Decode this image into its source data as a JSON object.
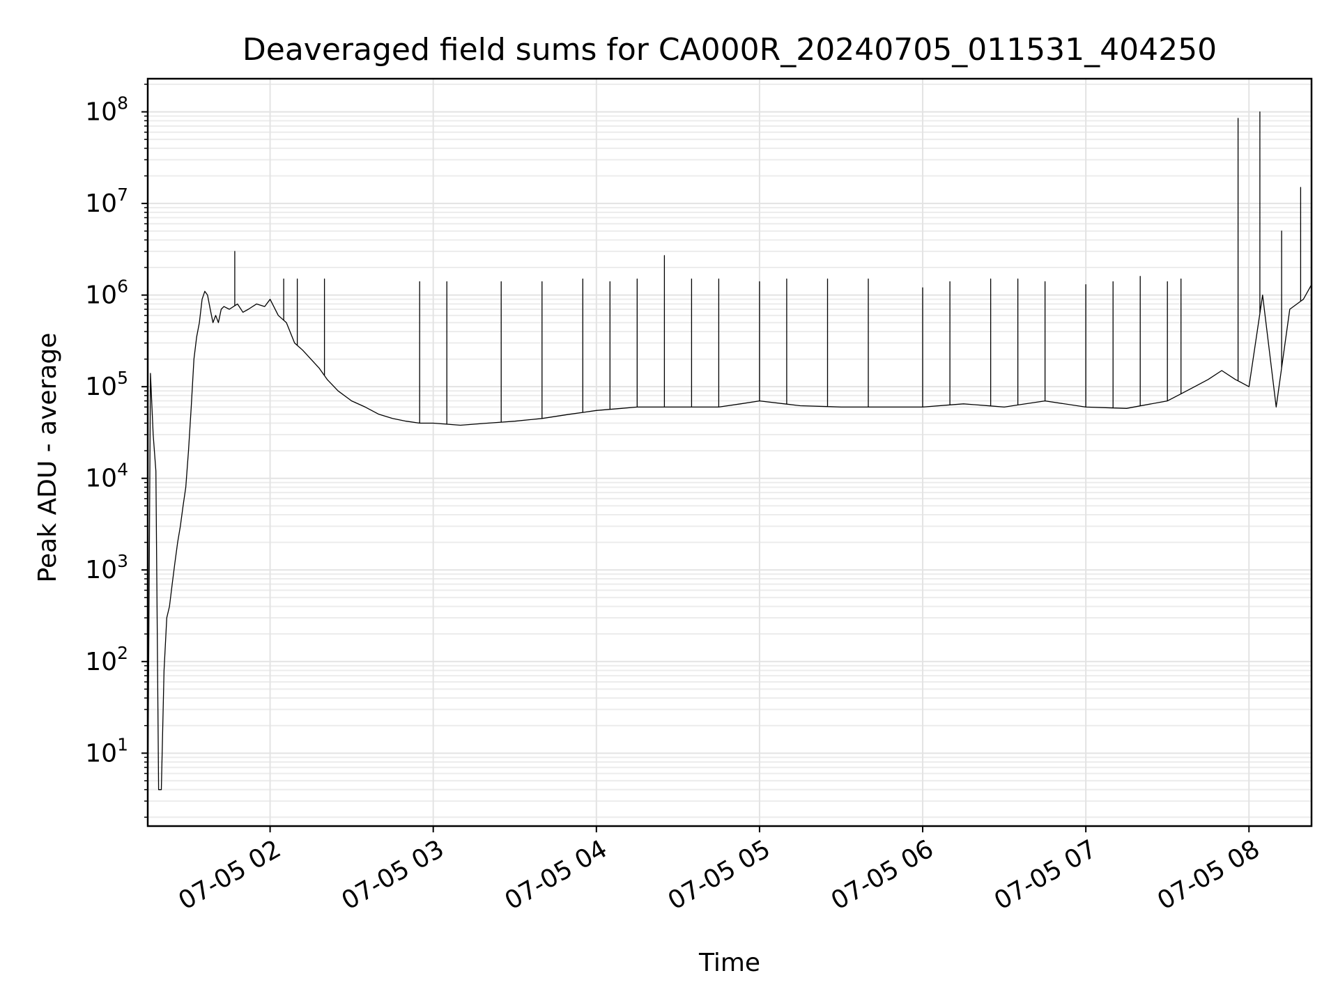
{
  "chart_data": {
    "type": "line",
    "title": "Deaveraged field sums for CA000R_20240705_011531_404250",
    "xlabel": "Time",
    "ylabel": "Peak ADU - average",
    "x_scale": "time",
    "y_scale": "log",
    "xlim": [
      "2024-07-05 01:15",
      "2024-07-05 08:23"
    ],
    "ylim": [
      1.6,
      230000000
    ],
    "grid": true,
    "grid_minor": true,
    "legend": "none",
    "line_color": "#000000",
    "x_ticks": [
      {
        "value": "2024-07-05 02:00",
        "label": "07-05 02"
      },
      {
        "value": "2024-07-05 03:00",
        "label": "07-05 03"
      },
      {
        "value": "2024-07-05 04:00",
        "label": "07-05 04"
      },
      {
        "value": "2024-07-05 05:00",
        "label": "07-05 05"
      },
      {
        "value": "2024-07-05 06:00",
        "label": "07-05 06"
      },
      {
        "value": "2024-07-05 07:00",
        "label": "07-05 07"
      },
      {
        "value": "2024-07-05 08:00",
        "label": "07-05 08"
      }
    ],
    "y_ticks": [
      {
        "value": 10,
        "base": "10",
        "exp": "1"
      },
      {
        "value": 100,
        "base": "10",
        "exp": "2"
      },
      {
        "value": 1000,
        "base": "10",
        "exp": "3"
      },
      {
        "value": 10000,
        "base": "10",
        "exp": "4"
      },
      {
        "value": 100000,
        "base": "10",
        "exp": "5"
      },
      {
        "value": 1000000,
        "base": "10",
        "exp": "6"
      },
      {
        "value": 10000000,
        "base": "10",
        "exp": "7"
      },
      {
        "value": 100000000,
        "base": "10",
        "exp": "8"
      }
    ],
    "series": [
      {
        "x": [
          "2024-07-05 01:15",
          "2024-07-05 01:16",
          "2024-07-05 01:17",
          "2024-07-05 01:18",
          "2024-07-05 01:19",
          "2024-07-05 01:20",
          "2024-07-05 01:21",
          "2024-07-05 01:22",
          "2024-07-05 01:23",
          "2024-07-05 01:24",
          "2024-07-05 01:25",
          "2024-07-05 01:26",
          "2024-07-05 01:27",
          "2024-07-05 01:28",
          "2024-07-05 01:29",
          "2024-07-05 01:30",
          "2024-07-05 01:31",
          "2024-07-05 01:32",
          "2024-07-05 01:33",
          "2024-07-05 01:34",
          "2024-07-05 01:35",
          "2024-07-05 01:36",
          "2024-07-05 01:37",
          "2024-07-05 01:38",
          "2024-07-05 01:39",
          "2024-07-05 01:40",
          "2024-07-05 01:41",
          "2024-07-05 01:42",
          "2024-07-05 01:43",
          "2024-07-05 01:45",
          "2024-07-05 01:48",
          "2024-07-05 01:50",
          "2024-07-05 01:52",
          "2024-07-05 01:55",
          "2024-07-05 01:58",
          "2024-07-05 02:00",
          "2024-07-05 02:03",
          "2024-07-05 02:06",
          "2024-07-05 02:09",
          "2024-07-05 02:12",
          "2024-07-05 02:15",
          "2024-07-05 02:18",
          "2024-07-05 02:21",
          "2024-07-05 02:25",
          "2024-07-05 02:30",
          "2024-07-05 02:35",
          "2024-07-05 02:40",
          "2024-07-05 02:45",
          "2024-07-05 02:50",
          "2024-07-05 02:55",
          "2024-07-05 03:00",
          "2024-07-05 03:10",
          "2024-07-05 03:20",
          "2024-07-05 03:30",
          "2024-07-05 03:40",
          "2024-07-05 03:50",
          "2024-07-05 04:00",
          "2024-07-05 04:15",
          "2024-07-05 04:30",
          "2024-07-05 04:45",
          "2024-07-05 04:53",
          "2024-07-05 05:00",
          "2024-07-05 05:15",
          "2024-07-05 05:30",
          "2024-07-05 05:45",
          "2024-07-05 06:00",
          "2024-07-05 06:15",
          "2024-07-05 06:30",
          "2024-07-05 06:45",
          "2024-07-05 07:00",
          "2024-07-05 07:15",
          "2024-07-05 07:30",
          "2024-07-05 07:40",
          "2024-07-05 07:45",
          "2024-07-05 07:50",
          "2024-07-05 07:55",
          "2024-07-05 08:00",
          "2024-07-05 08:05",
          "2024-07-05 08:10",
          "2024-07-05 08:15",
          "2024-07-05 08:20",
          "2024-07-05 08:23"
        ],
        "y": [
          2,
          140000,
          30000,
          12000,
          4,
          4,
          80,
          300,
          400,
          700,
          1200,
          2000,
          3000,
          5000,
          8000,
          20000,
          60000,
          200000,
          350000,
          500000,
          900000,
          1100000,
          1000000,
          700000,
          500000,
          600000,
          500000,
          700000,
          750000,
          700000,
          800000,
          650000,
          700000,
          800000,
          750000,
          900000,
          600000,
          500000,
          300000,
          250000,
          200000,
          160000,
          120000,
          90000,
          70000,
          60000,
          50000,
          45000,
          42000,
          40000,
          40000,
          38000,
          40000,
          42000,
          45000,
          50000,
          55000,
          60000,
          60000,
          60000,
          65000,
          70000,
          62000,
          60000,
          60000,
          60000,
          65000,
          60000,
          70000,
          60000,
          58000,
          70000,
          100000,
          120000,
          150000,
          120000,
          100000,
          1000000,
          60000,
          700000,
          900000,
          1300000
        ]
      }
    ],
    "spikes": [
      {
        "x": "2024-07-05 01:47",
        "y": 3000000
      },
      {
        "x": "2024-07-05 02:05",
        "y": 1500000
      },
      {
        "x": "2024-07-05 02:10",
        "y": 1500000
      },
      {
        "x": "2024-07-05 02:20",
        "y": 1500000
      },
      {
        "x": "2024-07-05 02:55",
        "y": 1400000
      },
      {
        "x": "2024-07-05 03:05",
        "y": 1400000
      },
      {
        "x": "2024-07-05 03:25",
        "y": 1400000
      },
      {
        "x": "2024-07-05 03:40",
        "y": 1400000
      },
      {
        "x": "2024-07-05 03:55",
        "y": 1500000
      },
      {
        "x": "2024-07-05 04:05",
        "y": 1400000
      },
      {
        "x": "2024-07-05 04:15",
        "y": 1500000
      },
      {
        "x": "2024-07-05 04:25",
        "y": 2700000
      },
      {
        "x": "2024-07-05 04:35",
        "y": 1500000
      },
      {
        "x": "2024-07-05 04:45",
        "y": 1500000
      },
      {
        "x": "2024-07-05 05:00",
        "y": 1400000
      },
      {
        "x": "2024-07-05 05:10",
        "y": 1500000
      },
      {
        "x": "2024-07-05 05:25",
        "y": 1500000
      },
      {
        "x": "2024-07-05 05:40",
        "y": 1500000
      },
      {
        "x": "2024-07-05 06:00",
        "y": 1200000
      },
      {
        "x": "2024-07-05 06:10",
        "y": 1400000
      },
      {
        "x": "2024-07-05 06:25",
        "y": 1500000
      },
      {
        "x": "2024-07-05 06:35",
        "y": 1500000
      },
      {
        "x": "2024-07-05 06:45",
        "y": 1400000
      },
      {
        "x": "2024-07-05 07:00",
        "y": 1300000
      },
      {
        "x": "2024-07-05 07:10",
        "y": 1400000
      },
      {
        "x": "2024-07-05 07:20",
        "y": 1600000
      },
      {
        "x": "2024-07-05 07:30",
        "y": 1400000
      },
      {
        "x": "2024-07-05 07:35",
        "y": 1500000
      },
      {
        "x": "2024-07-05 07:56",
        "y": 85000000
      },
      {
        "x": "2024-07-05 08:04",
        "y": 100000000
      },
      {
        "x": "2024-07-05 08:12",
        "y": 5000000
      },
      {
        "x": "2024-07-05 08:19",
        "y": 15000000
      }
    ]
  }
}
